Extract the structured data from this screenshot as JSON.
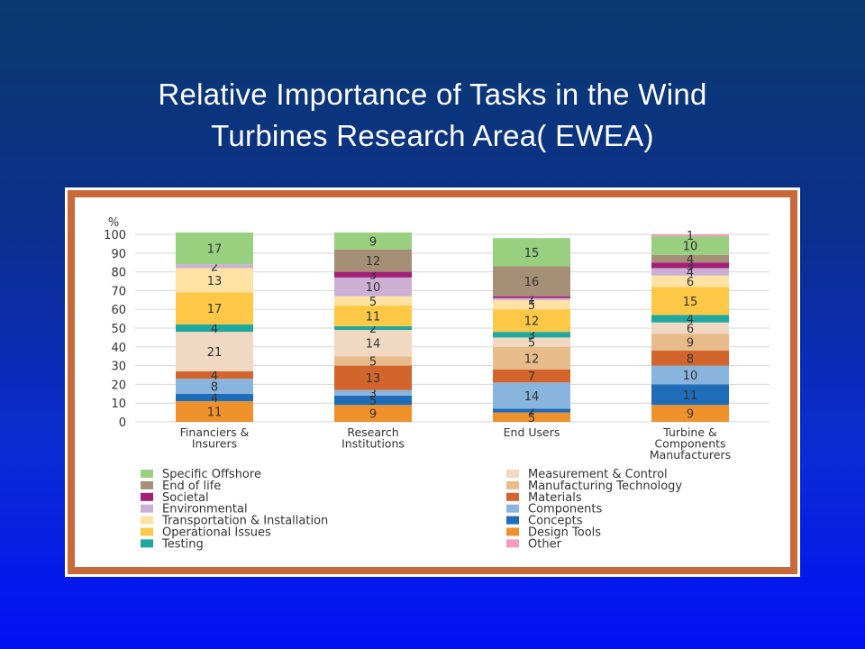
{
  "slide": {
    "title_line1": "Relative Importance of Tasks in the Wind",
    "title_line2": "Turbines Research Area( EWEA)"
  },
  "chart_data": {
    "type": "bar",
    "stacked": true,
    "ylabel": "%",
    "ylim": [
      0,
      100
    ],
    "yticks": [
      0,
      10,
      20,
      30,
      40,
      50,
      60,
      70,
      80,
      90,
      100
    ],
    "grid": true,
    "legend_position": "bottom",
    "categories": [
      [
        "Financiers &",
        "Insurers"
      ],
      [
        "Research",
        "Institutions"
      ],
      [
        "End Users"
      ],
      [
        "Turbine &",
        "Components",
        "Manufacturers"
      ]
    ],
    "series": [
      {
        "name": "Design Tools",
        "color": "#f0922c",
        "values": [
          11,
          9,
          5,
          9
        ]
      },
      {
        "name": "Concepts",
        "color": "#1f6cb8",
        "values": [
          4,
          5,
          2,
          11
        ]
      },
      {
        "name": "Components",
        "color": "#88b4de",
        "values": [
          8,
          3,
          14,
          10
        ]
      },
      {
        "name": "Materials",
        "color": "#d2642c",
        "values": [
          4,
          13,
          7,
          8
        ]
      },
      {
        "name": "Manufacturing Technology",
        "color": "#e8bb8a",
        "values": [
          0,
          5,
          12,
          9
        ]
      },
      {
        "name": "Measurement & Control",
        "color": "#f1d8c2",
        "values": [
          21,
          14,
          5,
          6
        ]
      },
      {
        "name": "Testing",
        "color": "#1fa89e",
        "values": [
          4,
          2,
          3,
          4
        ]
      },
      {
        "name": "Operational Issues",
        "color": "#fcc846",
        "values": [
          17,
          11,
          12,
          15
        ]
      },
      {
        "name": "Transportation & Installation",
        "color": "#fde2a4",
        "values": [
          13,
          5,
          5,
          6
        ]
      },
      {
        "name": "Environmental",
        "color": "#cbb0d4",
        "values": [
          2,
          10,
          1,
          4
        ]
      },
      {
        "name": "Societal",
        "color": "#a21f77",
        "values": [
          0,
          3,
          1,
          3
        ]
      },
      {
        "name": "End of life",
        "color": "#a68f77",
        "values": [
          0,
          12,
          16,
          4
        ]
      },
      {
        "name": "Specific Offshore",
        "color": "#98d080",
        "values": [
          17,
          9,
          15,
          10
        ]
      },
      {
        "name": "Other",
        "color": "#f49bbf",
        "values": [
          0,
          0,
          0,
          1
        ]
      }
    ],
    "legend_left": [
      "Specific Offshore",
      "End of life",
      "Societal",
      "Environmental",
      "Transportation & Installation",
      "Operational Issues",
      "Testing"
    ],
    "legend_right": [
      "Measurement & Control",
      "Manufacturing Technology",
      "Materials",
      "Components",
      "Concepts",
      "Design Tools",
      "Other"
    ]
  }
}
